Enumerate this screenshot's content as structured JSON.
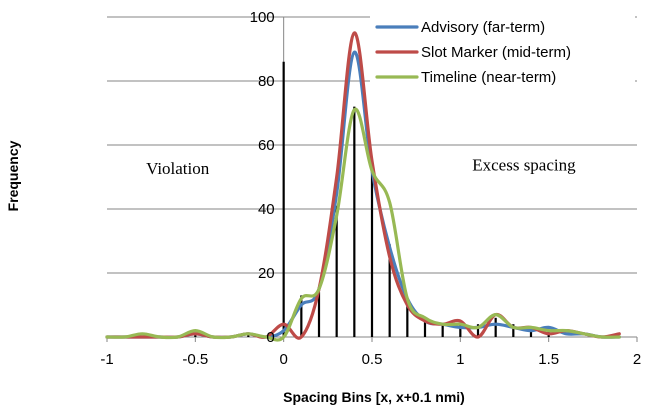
{
  "chart_data": {
    "type": "line",
    "title": "",
    "xlabel": "Spacing Bins  [x, x+0.1 nmi)",
    "ylabel": "Frequency",
    "xlim": [
      -1,
      2
    ],
    "ylim": [
      0,
      100
    ],
    "xticks": [
      -1,
      -0.5,
      0,
      0.5,
      1,
      1.5,
      2
    ],
    "xtick_labels": [
      "-1",
      "-0.5",
      "0",
      "0.5",
      "1",
      "1.5",
      "2"
    ],
    "yticks": [
      0,
      20,
      40,
      60,
      80,
      100
    ],
    "ytick_labels": [
      "0",
      "20",
      "40",
      "60",
      "80",
      "100"
    ],
    "grid": "horizontal",
    "legend_position": "top-right",
    "annotations": [
      {
        "text": "Violation",
        "x": -0.6,
        "y": 51
      },
      {
        "text": "Excess spacing",
        "x": 1.36,
        "y": 52
      }
    ],
    "vertical_lines": {
      "color": "#000000",
      "items": [
        {
          "x": 0.0,
          "y": 86
        },
        {
          "x": 0.1,
          "y": 13
        },
        {
          "x": 0.2,
          "y": 14
        },
        {
          "x": 0.3,
          "y": 41
        },
        {
          "x": 0.4,
          "y": 72
        },
        {
          "x": 0.5,
          "y": 52
        },
        {
          "x": 0.6,
          "y": 29
        },
        {
          "x": 0.7,
          "y": 10
        },
        {
          "x": 0.8,
          "y": 6
        },
        {
          "x": 0.9,
          "y": 4
        },
        {
          "x": 1.0,
          "y": 4
        },
        {
          "x": 1.1,
          "y": 4
        },
        {
          "x": 1.2,
          "y": 6
        },
        {
          "x": 1.3,
          "y": 4
        },
        {
          "x": 1.4,
          "y": 3
        },
        {
          "x": 1.5,
          "y": 2
        },
        {
          "x": -0.5,
          "y": 1
        },
        {
          "x": -0.2,
          "y": 1
        }
      ]
    },
    "x": [
      -1.0,
      -0.9,
      -0.8,
      -0.7,
      -0.6,
      -0.5,
      -0.4,
      -0.3,
      -0.2,
      -0.1,
      0.0,
      0.1,
      0.2,
      0.3,
      0.4,
      0.5,
      0.6,
      0.7,
      0.8,
      0.9,
      1.0,
      1.1,
      1.2,
      1.3,
      1.4,
      1.5,
      1.6,
      1.7,
      1.8,
      1.9
    ],
    "series": [
      {
        "name": "Advisory (far-term)",
        "color": "#4a7ebb",
        "values": [
          0,
          0,
          0,
          0,
          0,
          1,
          0,
          0,
          1,
          0,
          2,
          10,
          15,
          45,
          89,
          52,
          28,
          12,
          5,
          4,
          3,
          3,
          4,
          3,
          2,
          3,
          1,
          1,
          0,
          0
        ]
      },
      {
        "name": "Slot Marker (mid-term)",
        "color": "#be4b48",
        "values": [
          0,
          0,
          0,
          0,
          0,
          1,
          0,
          0,
          1,
          0,
          4,
          0,
          15,
          50,
          95,
          55,
          25,
          10,
          5,
          4,
          5,
          0,
          7,
          3,
          3,
          1,
          2,
          1,
          0,
          1
        ]
      },
      {
        "name": "Timeline (near-term)",
        "color": "#98b954",
        "values": [
          0,
          0,
          1,
          0,
          0,
          2,
          0,
          0,
          1,
          0,
          0,
          12,
          15,
          38,
          71,
          52,
          42,
          12,
          6,
          4,
          4,
          3,
          7,
          3,
          3,
          2,
          2,
          1,
          0,
          0
        ]
      }
    ]
  }
}
